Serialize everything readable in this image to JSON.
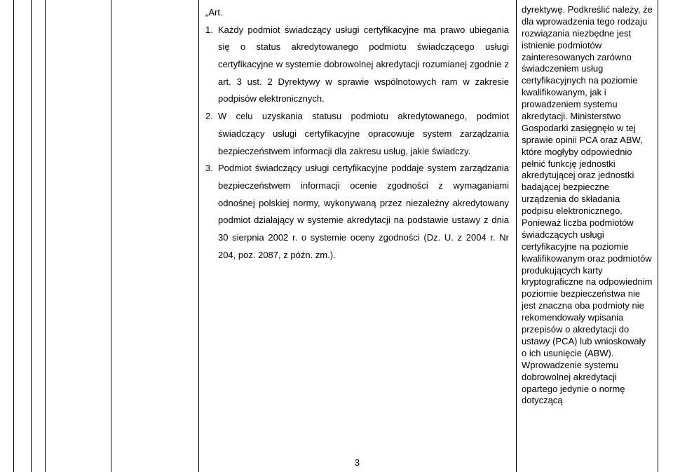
{
  "main": {
    "artLabel": "„Art.",
    "p1_num": "1.",
    "p1_text": "Każdy podmiot świadczący usługi certyfikacyjne ma prawo ubiegania się o status akredytowanego podmiotu świadczącego usługi certyfikacyjne w systemie dobrowolnej akredytacji rozumianej zgodnie z art. 3 ust. 2 Dyrektywy w sprawie wspólnotowych ram w zakresie podpisów elektronicznych.",
    "p2_num": "2.",
    "p2_text": "W celu uzyskania statusu podmiotu akredytowanego, podmiot świadczący usługi certyfikacyjne opracowuje system zarządzania bezpieczeństwem informacji dla zakresu usług, jakie świadczy.",
    "p3_num": "3.",
    "p3_text": "Podmiot świadczący usługi certyfikacyjne poddaje system zarządzania bezpieczeństwem informacji ocenie zgodności z wymaganiami odnośnej polskiej normy, wykonywaną przez niezależny akredytowany podmiot działający w systemie akredytacji na podstawie ustawy z dnia 30 sierpnia 2002 r. o systemie oceny zgodności (Dz. U. z 2004 r. Nr 204, poz. 2087, z późn. zm.)."
  },
  "right": {
    "text": "dyrektywę. Podkreślić należy, że dla wprowadzenia tego rodzaju rozwiązania niezbędne jest istnienie podmiotów zainteresowanych zarówno świadczeniem usług certyfikacyjnych na poziomie kwalifikowanym, jak i prowadzeniem systemu akredytacji. Ministerstwo Gospodarki zasięgnęło w tej sprawie opinii PCA oraz ABW, które mogłyby odpowiednio pełnić funkcję jednostki akredytującej oraz jednostki badającej bezpieczne urządzenia do składania podpisu elektronicznego. Ponieważ liczba podmiotów świadczących usługi certyfikacyjne na poziomie kwalifikowanym oraz podmiotów produkujących karty kryptograficzne na odpowiednim poziomie bezpieczeństwa nie jest znaczna oba podmioty nie rekomendowały wpisania przepisów o akredytacji do ustawy (PCA) lub wnioskowały o ich usunięcie (ABW). Wprowadzenie systemu dobrowolnej akredytacji opartego jedynie o normę dotyczącą"
  },
  "pageNumber": "3"
}
